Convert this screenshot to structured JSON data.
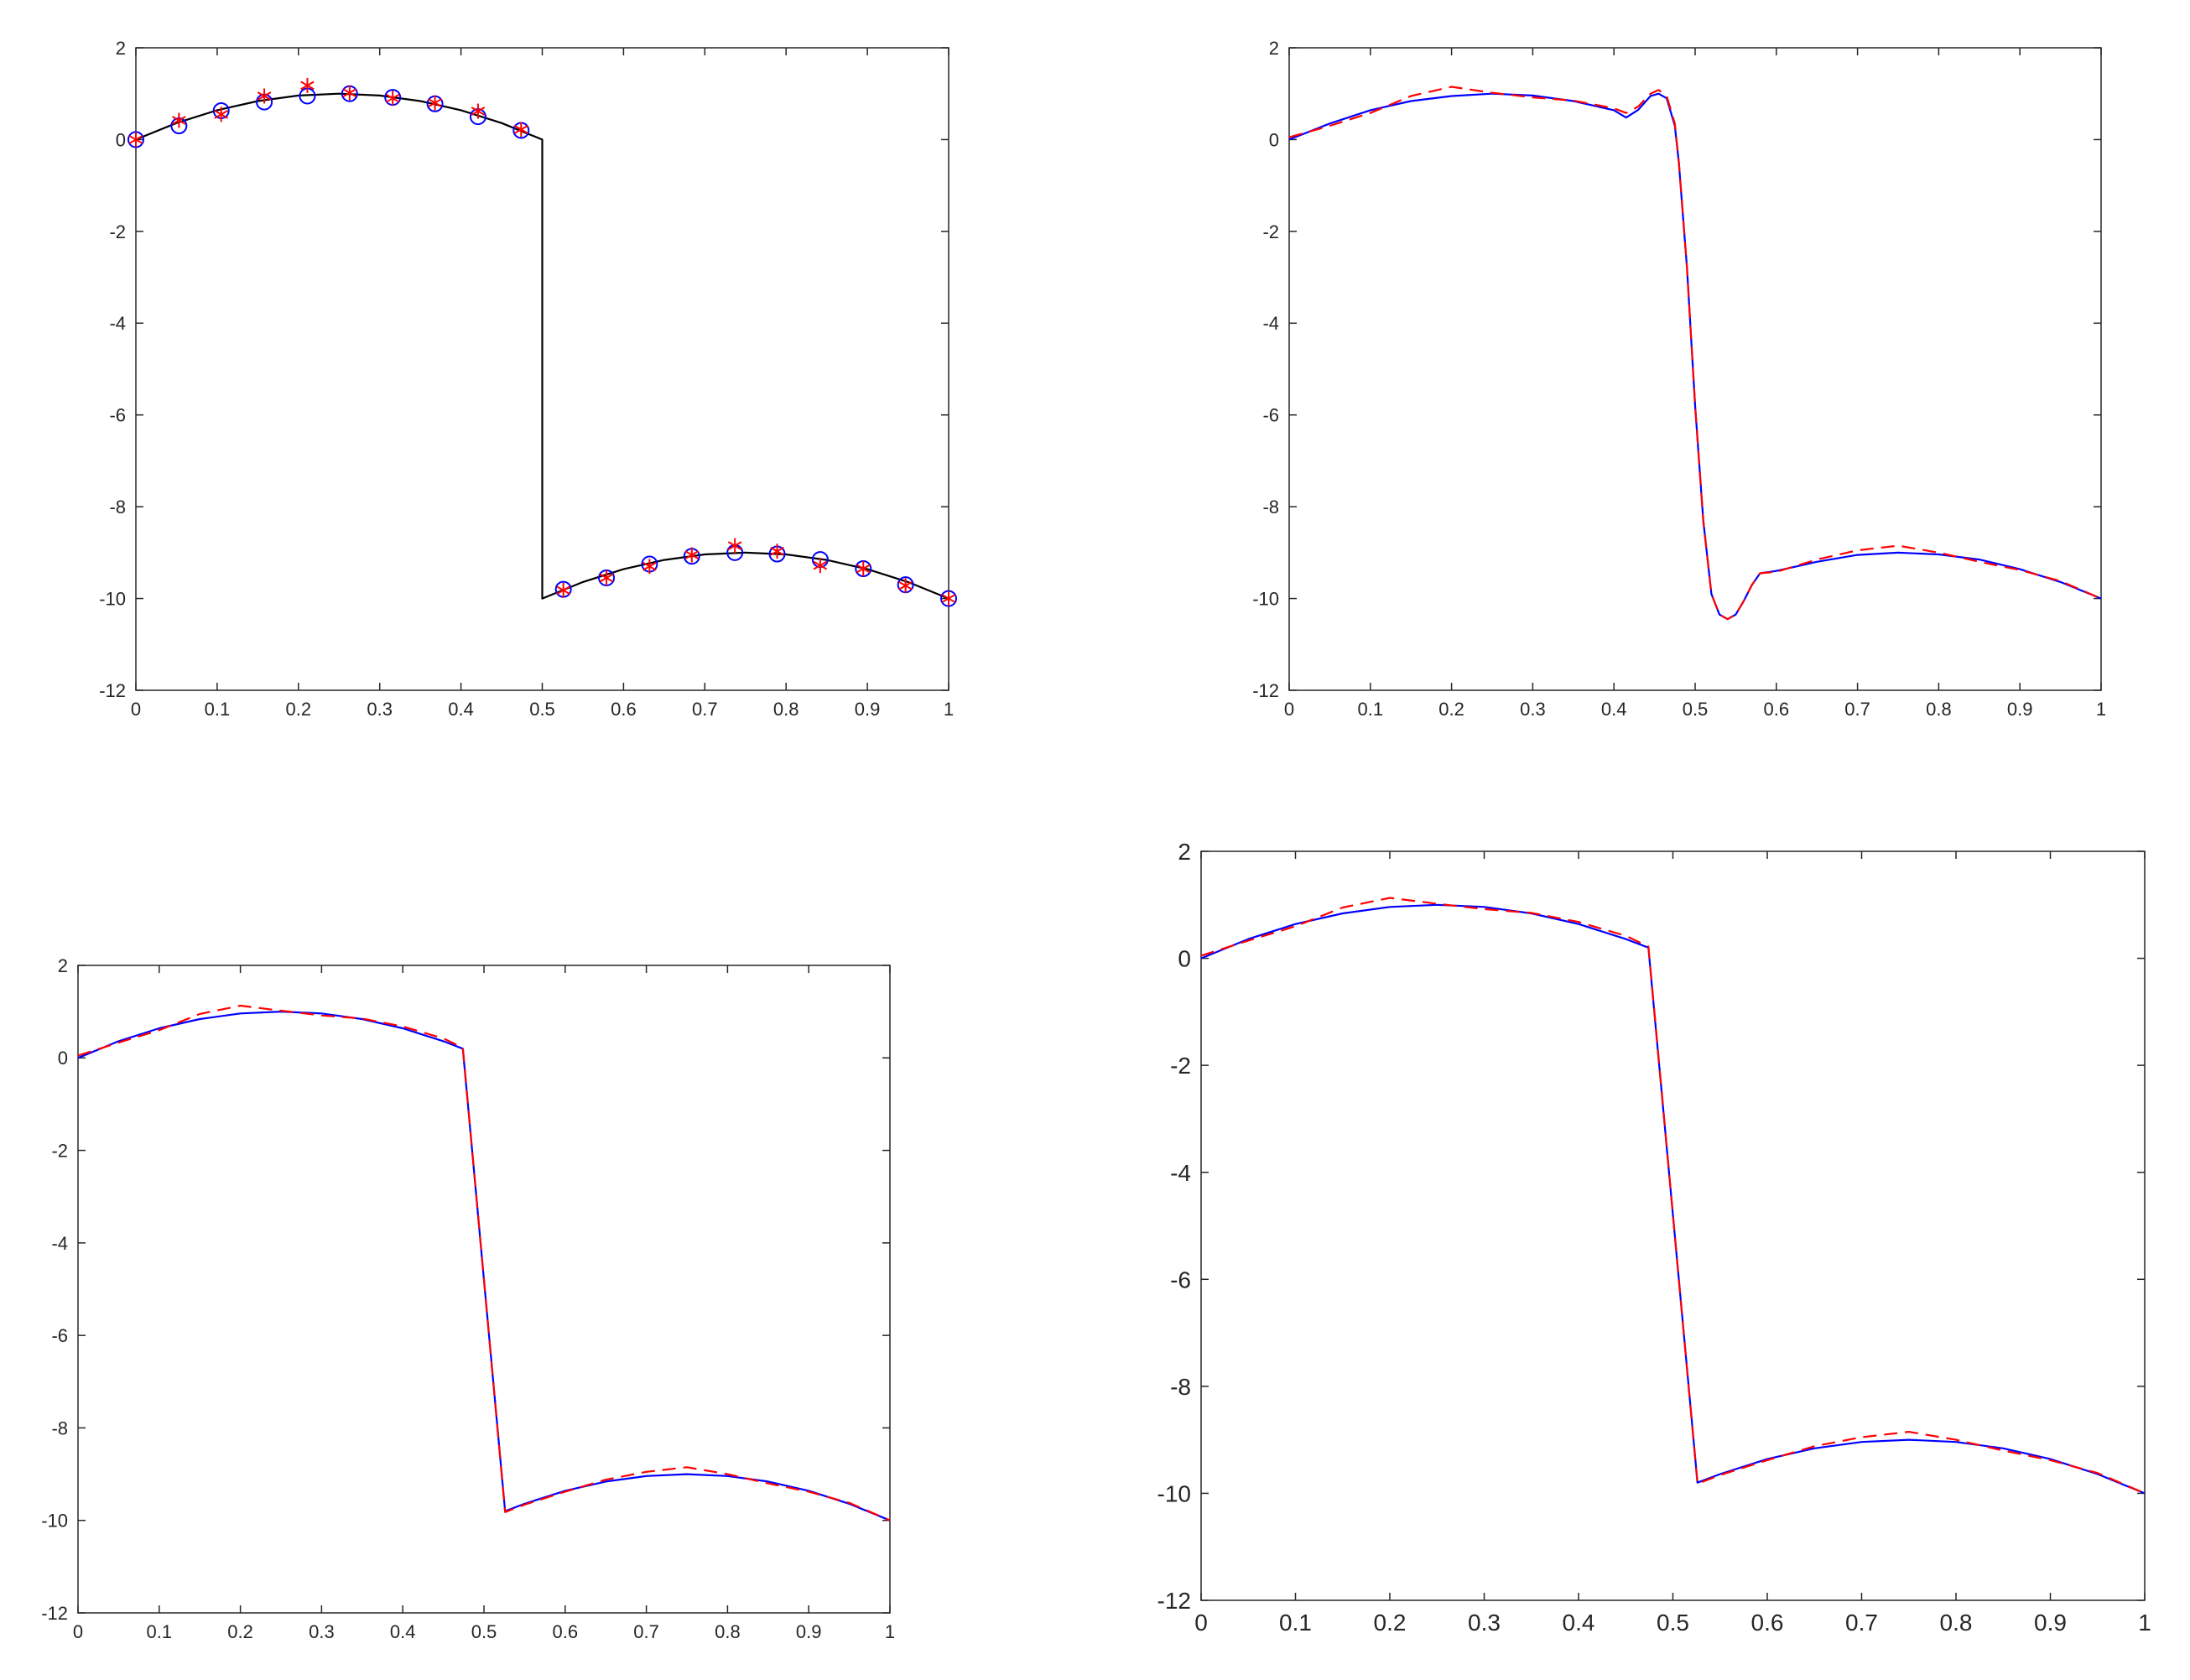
{
  "chart_data": [
    {
      "type": "line",
      "xlim": [
        0,
        1
      ],
      "ylim": [
        -12,
        2
      ],
      "xticks": [
        "0",
        "0.1",
        "0.2",
        "0.3",
        "0.4",
        "0.5",
        "0.6",
        "0.7",
        "0.8",
        "0.9",
        "1"
      ],
      "yticks": [
        "2",
        "0",
        "-2",
        "-4",
        "-6",
        "-8",
        "-10",
        "-12"
      ],
      "grid": false,
      "series": [
        {
          "style": "solid-line",
          "color": "#000000",
          "x": [
            0,
            0.05,
            0.1,
            0.15,
            0.2,
            0.25,
            0.3,
            0.35,
            0.4,
            0.45,
            0.5,
            0.5,
            0.55,
            0.6,
            0.65,
            0.7,
            0.75,
            0.8,
            0.85,
            0.9,
            0.95,
            1.0
          ],
          "y": [
            0,
            0.36,
            0.64,
            0.84,
            0.96,
            1.0,
            0.96,
            0.84,
            0.64,
            0.36,
            0,
            -10,
            -9.64,
            -9.36,
            -9.16,
            -9.04,
            -9.0,
            -9.04,
            -9.16,
            -9.36,
            -9.64,
            -10
          ]
        },
        {
          "style": "circle-markers",
          "color": "#0000ff",
          "x": [
            0,
            0.053,
            0.105,
            0.158,
            0.211,
            0.263,
            0.316,
            0.368,
            0.421,
            0.474,
            0.526,
            0.579,
            0.632,
            0.684,
            0.737,
            0.789,
            0.842,
            0.895,
            0.947,
            1.0
          ],
          "y": [
            0,
            0.3,
            0.63,
            0.82,
            0.95,
            1.0,
            0.92,
            0.78,
            0.5,
            0.2,
            -9.8,
            -9.55,
            -9.25,
            -9.08,
            -9.0,
            -9.03,
            -9.15,
            -9.35,
            -9.7,
            -10
          ]
        },
        {
          "style": "star-markers",
          "color": "#ff0000",
          "x": [
            0,
            0.053,
            0.105,
            0.158,
            0.211,
            0.263,
            0.316,
            0.368,
            0.421,
            0.474,
            0.526,
            0.579,
            0.632,
            0.684,
            0.737,
            0.789,
            0.842,
            0.895,
            0.947,
            1.0
          ],
          "y": [
            0,
            0.42,
            0.55,
            0.95,
            1.18,
            1.02,
            0.9,
            0.8,
            0.62,
            0.22,
            -9.82,
            -9.55,
            -9.3,
            -9.05,
            -8.85,
            -8.97,
            -9.28,
            -9.35,
            -9.72,
            -10
          ]
        }
      ]
    },
    {
      "type": "line",
      "xlim": [
        0,
        1
      ],
      "ylim": [
        -12,
        2
      ],
      "xticks": [
        "0",
        "0.1",
        "0.2",
        "0.3",
        "0.4",
        "0.5",
        "0.6",
        "0.7",
        "0.8",
        "0.9",
        "1"
      ],
      "yticks": [
        "2",
        "0",
        "-2",
        "-4",
        "-6",
        "-8",
        "-10",
        "-12"
      ],
      "grid": false,
      "series": [
        {
          "style": "solid-line",
          "color": "#0000ff",
          "x": [
            0,
            0.05,
            0.1,
            0.15,
            0.2,
            0.25,
            0.3,
            0.35,
            0.4,
            0.415,
            0.43,
            0.445,
            0.455,
            0.465,
            0.475,
            0.48,
            0.49,
            0.5,
            0.51,
            0.52,
            0.53,
            0.54,
            0.55,
            0.56,
            0.57,
            0.58,
            0.6,
            0.65,
            0.7,
            0.75,
            0.8,
            0.85,
            0.9,
            0.95,
            1.0
          ],
          "y": [
            0,
            0.35,
            0.64,
            0.84,
            0.95,
            1.0,
            0.96,
            0.84,
            0.64,
            0.48,
            0.65,
            0.95,
            1.0,
            0.9,
            0.3,
            -0.5,
            -2.8,
            -5.8,
            -8.3,
            -9.9,
            -10.35,
            -10.45,
            -10.35,
            -10.05,
            -9.7,
            -9.45,
            -9.4,
            -9.2,
            -9.05,
            -9.0,
            -9.04,
            -9.15,
            -9.36,
            -9.64,
            -10
          ]
        },
        {
          "style": "dashed-line",
          "color": "#ff0000",
          "x": [
            0,
            0.05,
            0.1,
            0.15,
            0.2,
            0.25,
            0.3,
            0.35,
            0.4,
            0.415,
            0.43,
            0.445,
            0.455,
            0.465,
            0.475,
            0.48,
            0.49,
            0.5,
            0.51,
            0.52,
            0.53,
            0.54,
            0.55,
            0.56,
            0.57,
            0.58,
            0.6,
            0.65,
            0.7,
            0.75,
            0.8,
            0.85,
            0.9,
            0.95,
            1.0
          ],
          "y": [
            0.05,
            0.3,
            0.58,
            0.95,
            1.15,
            1.02,
            0.92,
            0.85,
            0.68,
            0.58,
            0.72,
            1.0,
            1.08,
            0.95,
            0.35,
            -0.5,
            -2.8,
            -5.8,
            -8.3,
            -9.9,
            -10.35,
            -10.45,
            -10.35,
            -10.05,
            -9.7,
            -9.45,
            -9.42,
            -9.15,
            -8.95,
            -8.85,
            -9.0,
            -9.2,
            -9.38,
            -9.62,
            -10
          ]
        }
      ]
    },
    {
      "type": "line",
      "xlim": [
        0,
        1
      ],
      "ylim": [
        -12,
        2
      ],
      "xticks": [
        "0",
        "0.1",
        "0.2",
        "0.3",
        "0.4",
        "0.5",
        "0.6",
        "0.7",
        "0.8",
        "0.9",
        "1"
      ],
      "yticks": [
        "2",
        "0",
        "-2",
        "-4",
        "-6",
        "-8",
        "-10",
        "-12"
      ],
      "grid": false,
      "series": [
        {
          "style": "solid-line",
          "color": "#0000ff",
          "x": [
            0,
            0.05,
            0.1,
            0.15,
            0.2,
            0.25,
            0.3,
            0.35,
            0.4,
            0.45,
            0.474,
            0.526,
            0.55,
            0.6,
            0.65,
            0.7,
            0.75,
            0.8,
            0.85,
            0.9,
            0.95,
            1.0
          ],
          "y": [
            0,
            0.36,
            0.64,
            0.84,
            0.96,
            1.0,
            0.96,
            0.84,
            0.64,
            0.36,
            0.2,
            -9.8,
            -9.64,
            -9.36,
            -9.16,
            -9.04,
            -9.0,
            -9.04,
            -9.16,
            -9.36,
            -9.64,
            -10
          ]
        },
        {
          "style": "dashed-line",
          "color": "#ff0000",
          "x": [
            0,
            0.05,
            0.1,
            0.15,
            0.2,
            0.25,
            0.3,
            0.35,
            0.4,
            0.45,
            0.474,
            0.526,
            0.55,
            0.6,
            0.65,
            0.7,
            0.75,
            0.8,
            0.85,
            0.9,
            0.95,
            1.0
          ],
          "y": [
            0.05,
            0.33,
            0.6,
            0.95,
            1.13,
            1.02,
            0.92,
            0.85,
            0.68,
            0.42,
            0.22,
            -9.82,
            -9.66,
            -9.38,
            -9.12,
            -8.95,
            -8.85,
            -9.0,
            -9.2,
            -9.38,
            -9.62,
            -10
          ]
        }
      ]
    },
    {
      "type": "line",
      "xlim": [
        0,
        1
      ],
      "ylim": [
        -12,
        2
      ],
      "xticks": [
        "0",
        "0.1",
        "0.2",
        "0.3",
        "0.4",
        "0.5",
        "0.6",
        "0.7",
        "0.8",
        "0.9",
        "1"
      ],
      "yticks": [
        "2",
        "0",
        "-2",
        "-4",
        "-6",
        "-8",
        "-10",
        "-12"
      ],
      "grid": false,
      "series": [
        {
          "style": "solid-line",
          "color": "#0000ff",
          "x": [
            0,
            0.05,
            0.1,
            0.15,
            0.2,
            0.25,
            0.3,
            0.35,
            0.4,
            0.45,
            0.474,
            0.526,
            0.55,
            0.6,
            0.65,
            0.7,
            0.75,
            0.8,
            0.85,
            0.9,
            0.95,
            1.0
          ],
          "y": [
            0,
            0.36,
            0.64,
            0.84,
            0.96,
            1.0,
            0.96,
            0.84,
            0.64,
            0.36,
            0.2,
            -9.8,
            -9.64,
            -9.36,
            -9.16,
            -9.04,
            -9.0,
            -9.04,
            -9.16,
            -9.36,
            -9.64,
            -10
          ]
        },
        {
          "style": "dashed-line",
          "color": "#ff0000",
          "x": [
            0,
            0.05,
            0.1,
            0.15,
            0.2,
            0.25,
            0.3,
            0.35,
            0.4,
            0.45,
            0.474,
            0.526,
            0.55,
            0.6,
            0.65,
            0.7,
            0.75,
            0.8,
            0.85,
            0.9,
            0.95,
            1.0
          ],
          "y": [
            0.05,
            0.33,
            0.6,
            0.95,
            1.13,
            1.02,
            0.92,
            0.85,
            0.68,
            0.42,
            0.22,
            -9.82,
            -9.66,
            -9.38,
            -9.12,
            -8.95,
            -8.85,
            -9.0,
            -9.2,
            -9.38,
            -9.62,
            -10
          ]
        }
      ]
    }
  ]
}
